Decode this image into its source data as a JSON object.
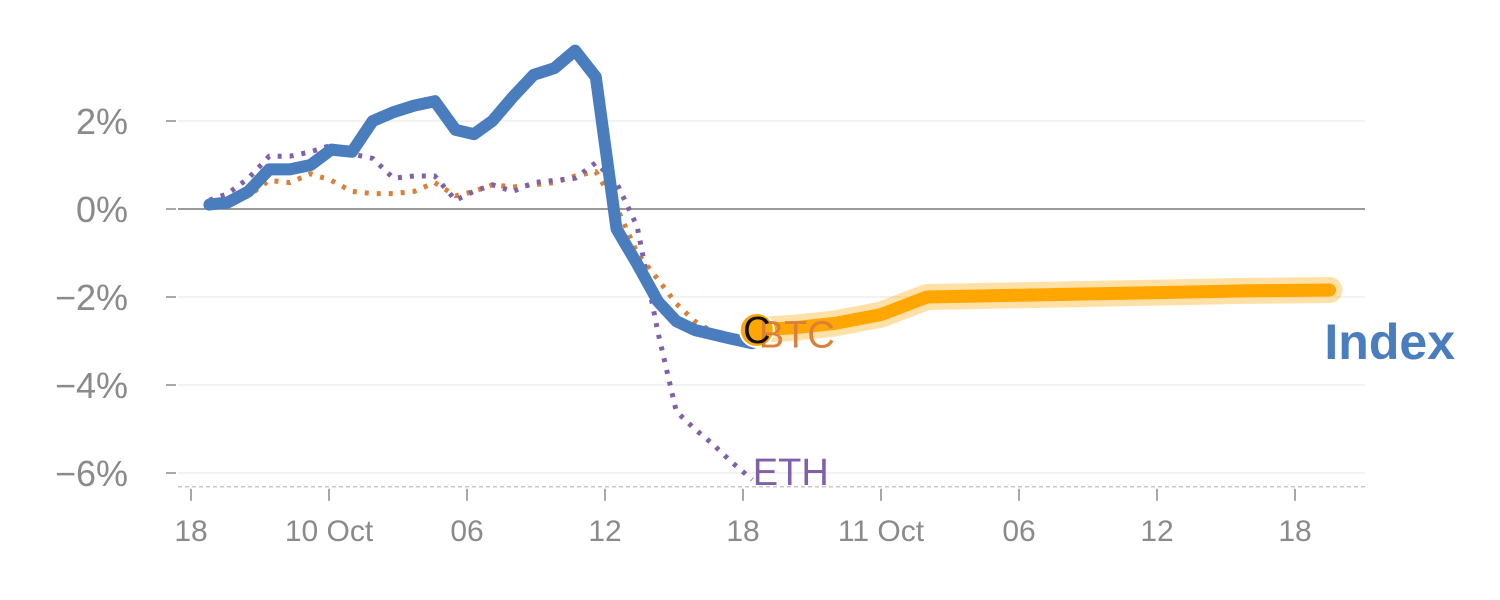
{
  "chart_data": {
    "type": "line",
    "ylim": [
      -6.2,
      3.9
    ],
    "y_ticks": [
      {
        "value": 2,
        "label": "2%"
      },
      {
        "value": 0,
        "label": "0%"
      },
      {
        "value": -2,
        "label": "−2%"
      },
      {
        "value": -4,
        "label": "−4%"
      },
      {
        "value": -6,
        "label": "−6%"
      }
    ],
    "x_ticks": [
      {
        "x": 0,
        "label": "18"
      },
      {
        "x": 6,
        "label": "10 Oct"
      },
      {
        "x": 12,
        "label": "06"
      },
      {
        "x": 18,
        "label": "12"
      },
      {
        "x": 24,
        "label": "18"
      },
      {
        "x": 30,
        "label": "11 Oct"
      },
      {
        "x": 36,
        "label": "06"
      },
      {
        "x": 42,
        "label": "12"
      },
      {
        "x": 48,
        "label": "18"
      }
    ],
    "grid": true,
    "series": [
      {
        "name": "Index",
        "color": "#4a7dbe",
        "style": "solid",
        "x": [
          0.8,
          1.6,
          2.5,
          3.4,
          4.3,
          5.2,
          6.1,
          7.0,
          7.9,
          8.8,
          9.7,
          10.6,
          11.5,
          12.3,
          13.1,
          14.0,
          14.9,
          15.8,
          16.7,
          17.6,
          18.5,
          19.4,
          20.3,
          21.1,
          21.9,
          22.7,
          23.5,
          24.4
        ],
        "y": [
          0.1,
          0.15,
          0.4,
          0.9,
          0.9,
          1.0,
          1.35,
          1.3,
          2.0,
          2.2,
          2.35,
          2.45,
          1.8,
          1.7,
          2.0,
          2.55,
          3.05,
          3.2,
          3.6,
          3.0,
          -0.45,
          -1.25,
          -2.1,
          -2.55,
          -2.75,
          -2.85,
          -2.95,
          -3.05
        ]
      },
      {
        "name": "BTC",
        "color": "#d9803a",
        "style": "dotted",
        "x": [
          0.8,
          1.6,
          2.5,
          3.4,
          4.3,
          5.2,
          6.1,
          7.0,
          7.9,
          8.8,
          9.7,
          10.6,
          11.5,
          12.3,
          13.1,
          14.0,
          14.9,
          15.8,
          16.7,
          17.6,
          18.5,
          19.4,
          20.3,
          21.1,
          21.9,
          22.7,
          23.5,
          24.4
        ],
        "y": [
          0.1,
          0.1,
          0.3,
          0.65,
          0.6,
          0.8,
          0.65,
          0.4,
          0.35,
          0.35,
          0.4,
          0.6,
          0.3,
          0.4,
          0.55,
          0.5,
          0.55,
          0.6,
          0.75,
          0.85,
          0.05,
          -1.0,
          -1.6,
          -2.15,
          -2.55,
          -2.8,
          -2.9,
          -3.0
        ]
      },
      {
        "name": "ETH",
        "color": "#8060a8",
        "style": "dotted",
        "x": [
          0.8,
          1.6,
          2.5,
          3.4,
          4.3,
          5.2,
          6.1,
          7.0,
          7.9,
          8.8,
          9.7,
          10.6,
          11.5,
          12.3,
          13.1,
          14.0,
          14.9,
          15.8,
          16.7,
          17.6,
          18.5,
          19.4,
          20.3,
          21.1,
          21.9,
          22.7,
          23.5,
          24.4
        ],
        "y": [
          0.2,
          0.35,
          0.7,
          1.2,
          1.2,
          1.3,
          1.45,
          1.25,
          1.15,
          0.7,
          0.75,
          0.75,
          0.2,
          0.4,
          0.55,
          0.4,
          0.6,
          0.65,
          0.7,
          1.05,
          0.6,
          -0.4,
          -2.8,
          -4.6,
          -5.0,
          -5.35,
          -5.75,
          -6.15
        ]
      }
    ],
    "projection": {
      "name": "Index",
      "color": "#ffa600",
      "x": [
        24.6,
        26.2,
        28.0,
        30.0,
        32.0,
        34.0,
        36.0,
        38.0,
        40.0,
        42.0,
        44.0,
        46.0,
        48.0,
        49.5
      ],
      "y": [
        -2.75,
        -2.7,
        -2.6,
        -2.4,
        -2.0,
        -1.98,
        -1.96,
        -1.94,
        -1.92,
        -1.9,
        -1.88,
        -1.86,
        -1.85,
        -1.84
      ]
    },
    "marker": {
      "x": 24.6,
      "y": -2.75,
      "label": "C"
    },
    "labels": {
      "btc": {
        "text": "BTC",
        "x": 24.6,
        "y": -2.85
      },
      "eth": {
        "text": "ETH",
        "x": 24.6,
        "y": -5.95
      },
      "index": {
        "text": "Index",
        "x": 49.5,
        "y": -3.0
      }
    }
  }
}
